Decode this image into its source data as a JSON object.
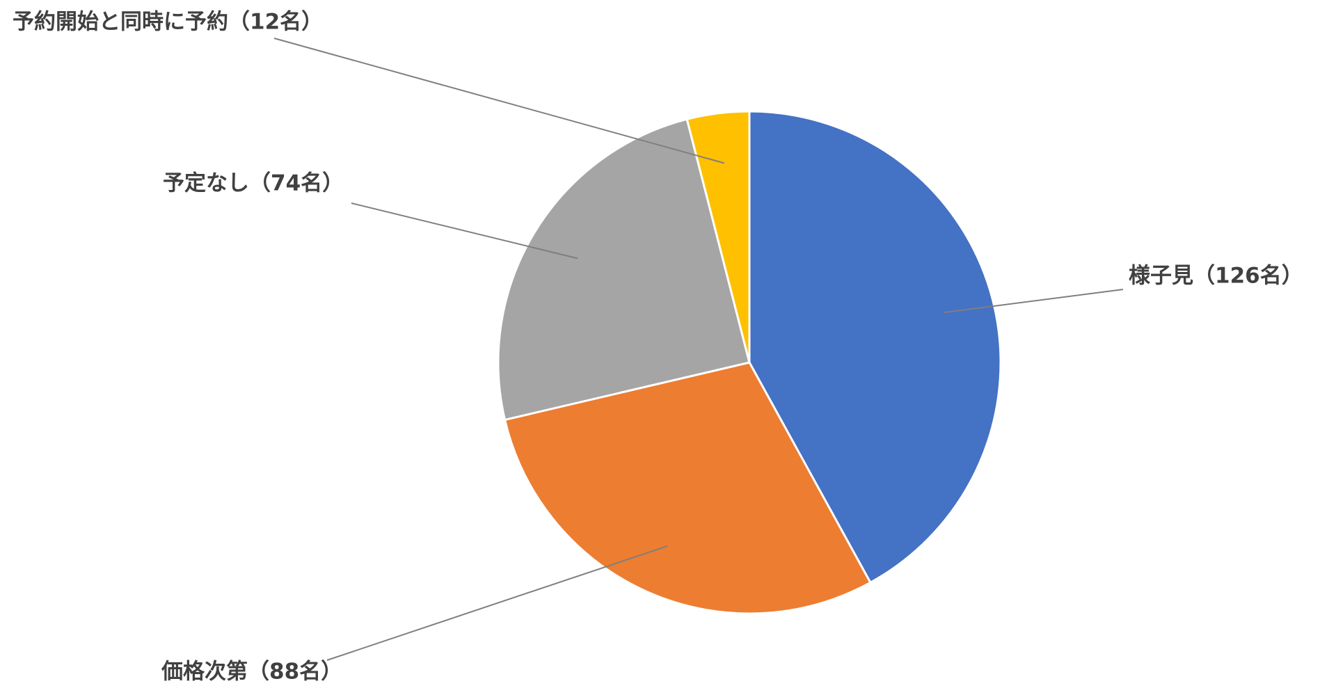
{
  "chart_data": {
    "type": "pie",
    "values": [
      126,
      88,
      74,
      12
    ],
    "value_labels": [
      "様子見（126名）",
      "価格次第（88名）",
      "予定なし（74名）",
      "予約開始と同時に予約（12名）"
    ],
    "colors": [
      "#4472c4",
      "#ed7d31",
      "#a5a5a5",
      "#ffc000"
    ]
  }
}
